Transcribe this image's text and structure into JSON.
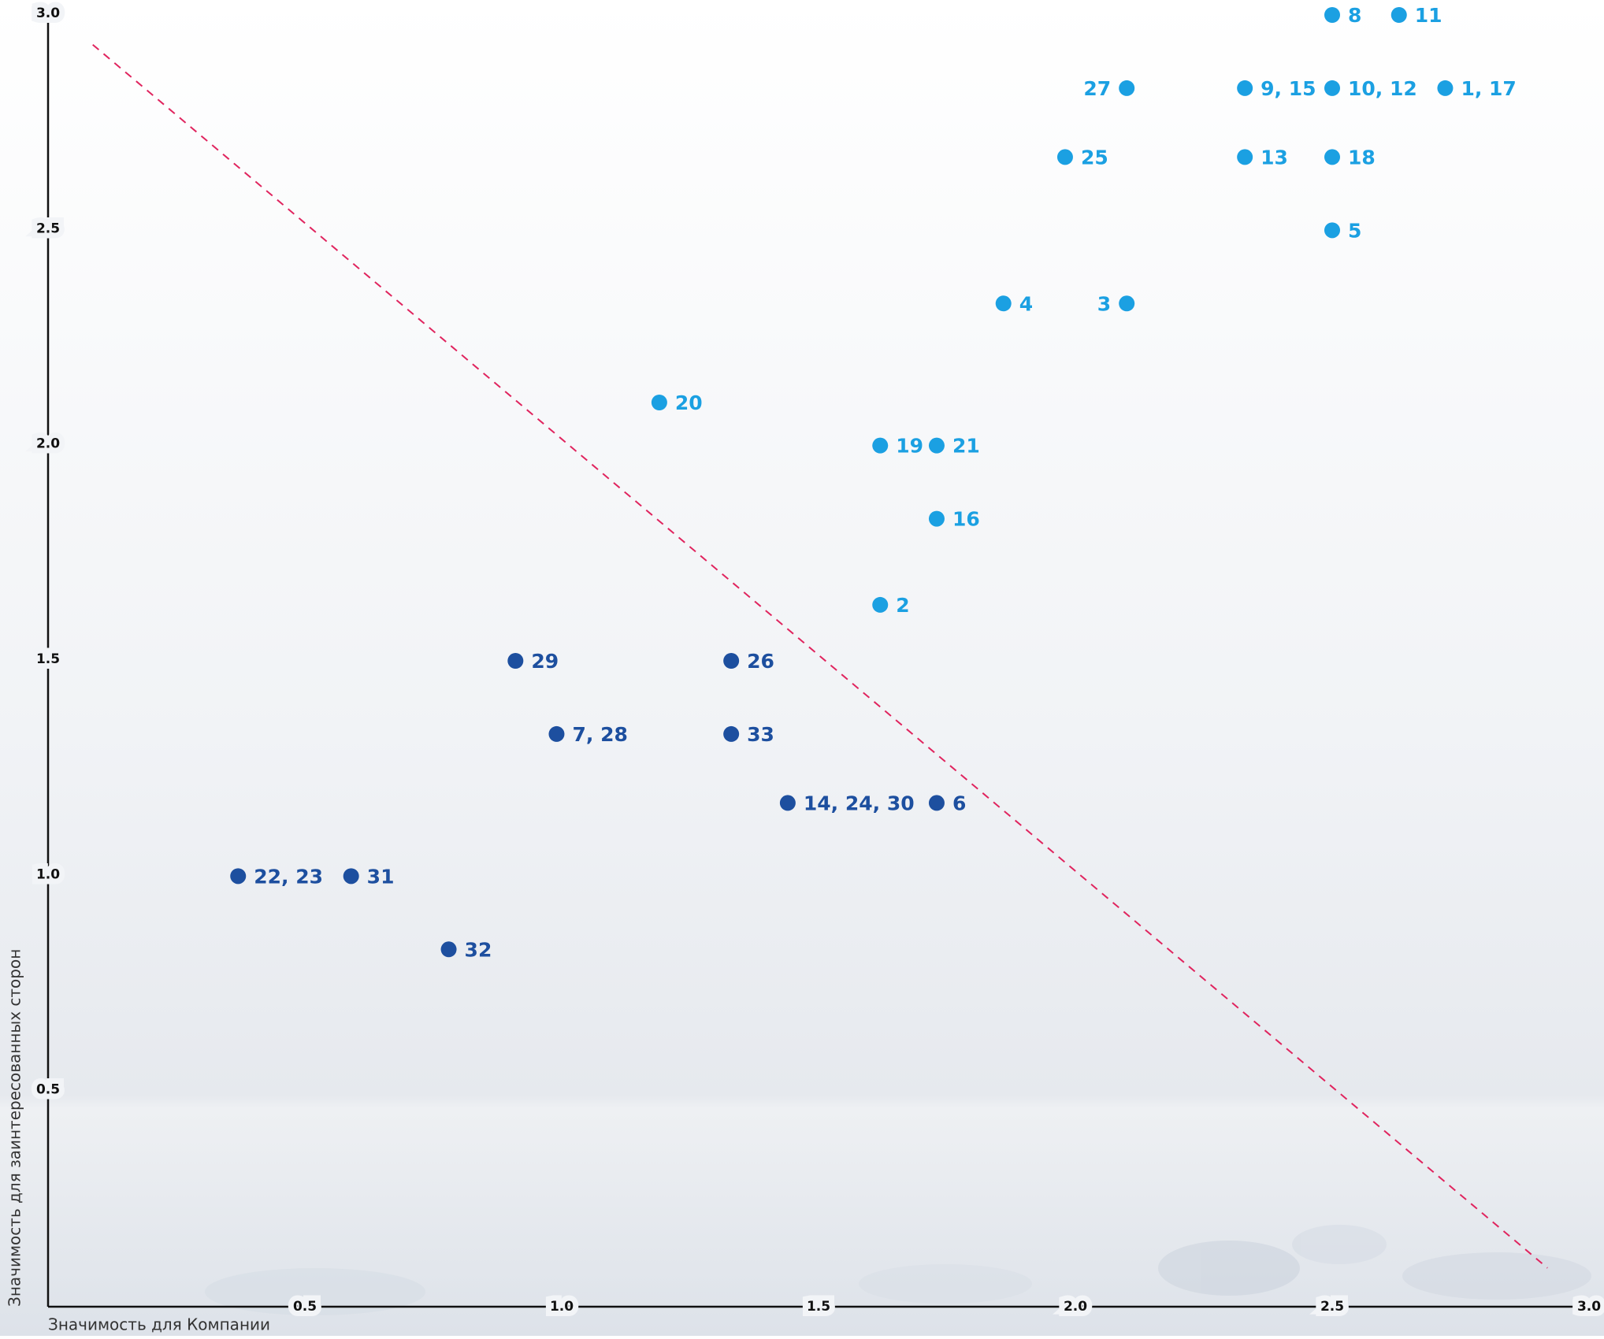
{
  "chart_data": {
    "type": "scatter",
    "xlabel": "Значимость для Компании",
    "ylabel": "Значимость для заинтересованных сторон",
    "xlim": [
      0,
      3
    ],
    "ylim": [
      0,
      3
    ],
    "xticks": [
      0.5,
      {
        "value": 1,
        "label": "1.0"
      },
      1.5,
      {
        "value": 2,
        "label": "2.0"
      },
      2.5,
      {
        "value": 3,
        "label": "3.0"
      }
    ],
    "yticks": [
      0.5,
      {
        "value": 1,
        "label": "1.0"
      },
      1.5,
      {
        "value": 2,
        "label": "2.0"
      },
      2.5,
      {
        "value": 3,
        "label": "3.0"
      }
    ],
    "series": [
      {
        "color": "#1ba0e2",
        "labels": [
          "8",
          "11",
          "27",
          "9, 15",
          "10, 12",
          "1, 17",
          "25",
          "13",
          "18",
          "5",
          "4",
          "3",
          "20",
          "19",
          "21",
          "16",
          "2"
        ],
        "x": [
          2.5,
          2.63,
          2.1,
          2.33,
          2.5,
          2.72,
          1.98,
          2.33,
          2.5,
          2.5,
          1.86,
          2.1,
          1.19,
          1.62,
          1.73,
          1.73,
          1.62
        ],
        "y": [
          3.0,
          3.0,
          2.83,
          2.83,
          2.83,
          2.83,
          2.67,
          2.67,
          2.67,
          2.5,
          2.33,
          2.33,
          2.1,
          2.0,
          2.0,
          1.83,
          1.63
        ]
      },
      {
        "color": "#1d4f9f",
        "labels": [
          "29",
          "26",
          "7, 28",
          "33",
          "14, 24, 30",
          "6",
          "22, 23",
          "31",
          "32"
        ],
        "x": [
          0.91,
          1.33,
          0.99,
          1.33,
          1.44,
          1.73,
          0.37,
          0.59,
          0.78
        ],
        "y": [
          1.5,
          1.5,
          1.33,
          1.33,
          1.17,
          1.17,
          1.0,
          1.0,
          0.83
        ]
      }
    ]
  }
}
